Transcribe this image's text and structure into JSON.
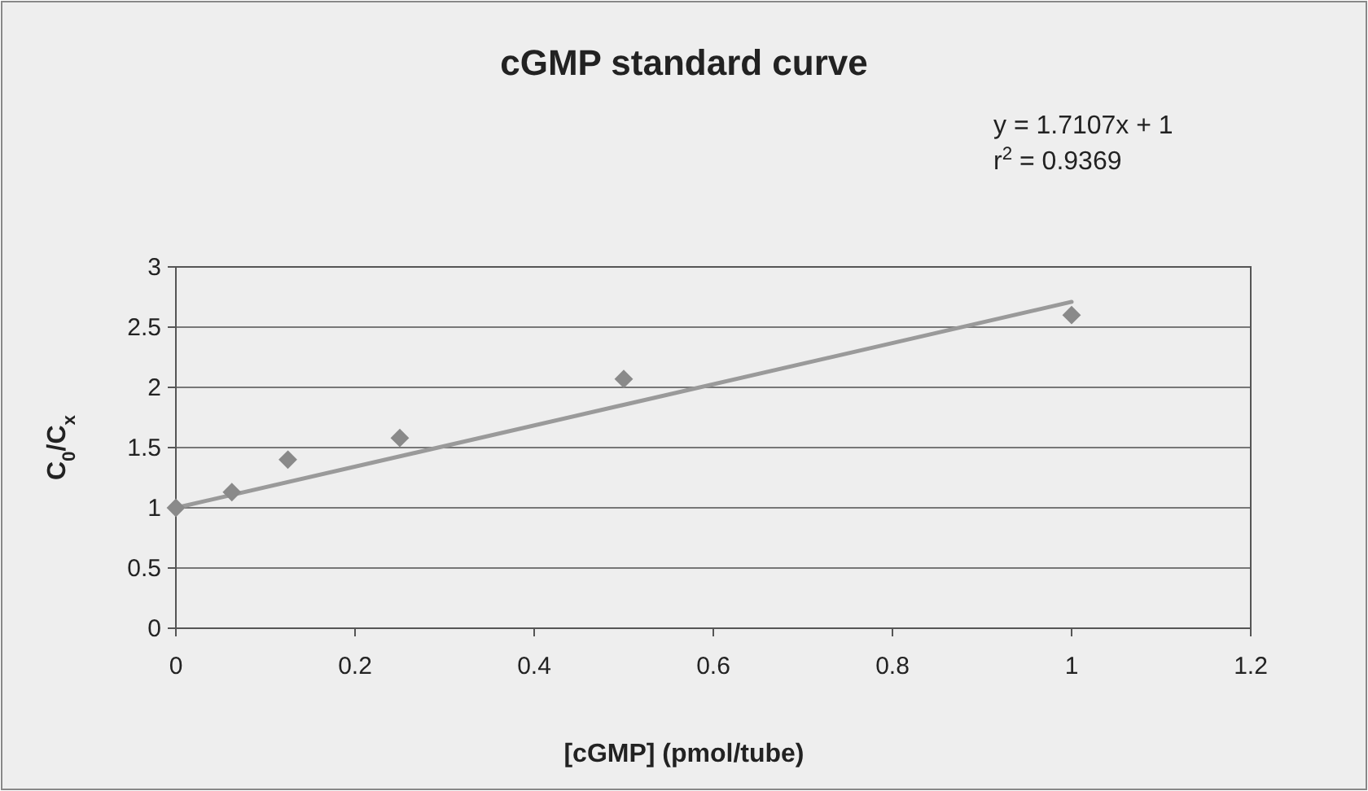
{
  "chart_data": {
    "type": "scatter",
    "title": "cGMP standard curve",
    "xlabel": "[cGMP] (pmol/tube)",
    "ylabel": "C$_{0}$/C$_{x}$",
    "annotations": [
      "y = 1.7107x + 1",
      "r$^{2}$ = 0.9369"
    ],
    "series": [
      {
        "color": "#8a8a8a",
        "marker": "diamond",
        "x": [
          0,
          0.0625,
          0.125,
          0.25,
          0.5,
          1
        ],
        "values": [
          1.0,
          1.13,
          1.4,
          1.58,
          2.07,
          2.6
        ]
      },
      {
        "type": "line",
        "color": "#9a9a9a",
        "marker": "none",
        "x": [
          0,
          1
        ],
        "values": [
          1,
          2.71
        ]
      }
    ],
    "xlim": [
      0,
      1.2
    ],
    "xticks": [
      0,
      0.2,
      0.4,
      0.6,
      0.8,
      1,
      1.2
    ],
    "ylim": [
      0,
      3
    ],
    "yticks": [
      0,
      0.5,
      1,
      1.5,
      2,
      2.5,
      3
    ],
    "grid": "y",
    "line_style": "solid"
  }
}
